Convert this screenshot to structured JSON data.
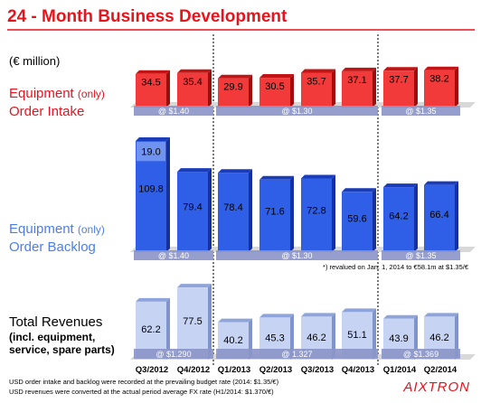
{
  "title": "24 - Month Business Development",
  "unit_label": "(€ million)",
  "brand": "AIXTRON",
  "colors": {
    "title": "#e8141b",
    "red_front": "#f23a3a",
    "red_top": "#c21414",
    "red_side": "#9e0c0c",
    "blue_front": "#2f5fe6",
    "blue_top": "#1a3cb8",
    "blue_side": "#1530a0",
    "light_front": "#c6d3f2",
    "light_top": "#8fa4da",
    "light_side": "#7f94cc",
    "fx_band": "#8c96c8",
    "section_blue": "#4d7ee8",
    "text_dark": "#000000"
  },
  "footnotes": [
    "USD order intake and backlog were recorded at the prevailing budget rate (2014: $1.35/€)",
    "USD revenues were converted at the actual period average FX rate (H1/2014: $1.370/€)"
  ],
  "revaluation_note": "*) revalued on Jan. 1, 2014 to €58.1m at $1.35/€",
  "chart_data": {
    "type": "bar",
    "categories": [
      "Q3/2012",
      "Q4/2012",
      "Q1/2013",
      "Q2/2013",
      "Q3/2013",
      "Q4/2013",
      "Q1/2014",
      "Q2/2014"
    ],
    "title": "24 - Month Business Development",
    "unit": "(€ million)",
    "series": [
      {
        "name": "Equipment (only) Order Intake",
        "label_main": "Equipment",
        "label_small": "(only)",
        "label_line2": "Order Intake",
        "values": [
          34.5,
          35.4,
          29.9,
          30.5,
          35.7,
          37.1,
          37.7,
          38.2
        ],
        "fx_bands": [
          "@ $1.40",
          "@ $1.30",
          "@ $1.35"
        ]
      },
      {
        "name": "Equipment (only) Order Backlog",
        "label_main": "Equipment",
        "label_small": "(only)",
        "label_line2": "Order Backlog",
        "values": [
          109.8,
          79.4,
          78.4,
          71.6,
          72.8,
          59.6,
          64.2,
          66.4
        ],
        "extra_label": "19.0",
        "extra_value": 19.0,
        "fx_bands": [
          "@ $1.40",
          "@ $1.30",
          "@ $1.35"
        ]
      },
      {
        "name": "Total Revenues (incl. equipment, service, spare parts)",
        "label_main": "Total Revenues",
        "label_line2": "(incl. equipment,",
        "label_line3": "service, spare parts)",
        "values": [
          62.2,
          77.5,
          40.2,
          45.3,
          46.2,
          51.1,
          43.9,
          46.2
        ],
        "fx_bands": [
          "@ $1.290",
          "@ 1.327",
          "@ $1.369"
        ]
      }
    ]
  }
}
